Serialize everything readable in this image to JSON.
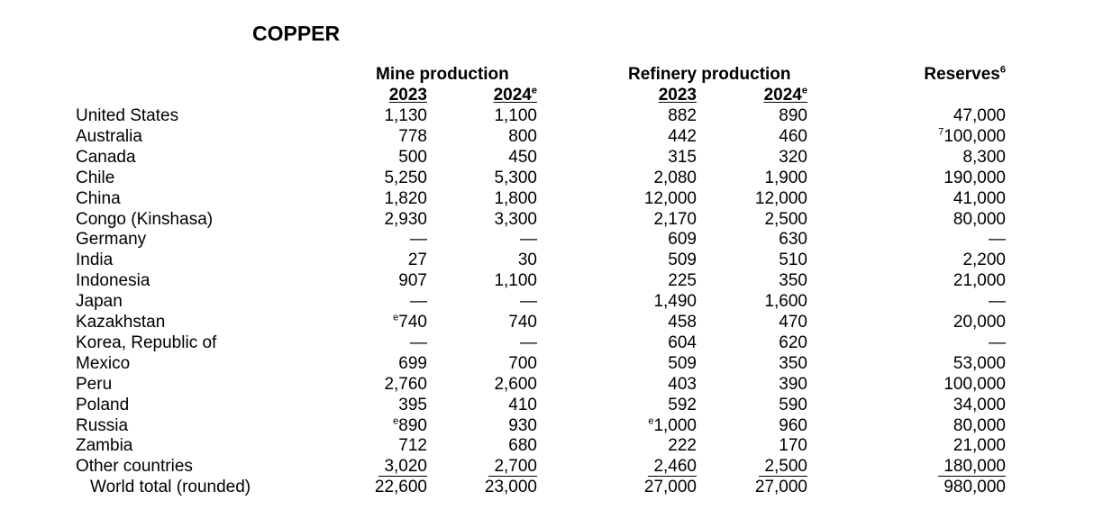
{
  "title": "COPPER",
  "headers": {
    "mine_production": "Mine production",
    "refinery_production": "Refinery production",
    "reserves": "Reserves",
    "reserves_note": "6",
    "year1": "2023",
    "year2": "2024",
    "estimate_mark": "e"
  },
  "rows": [
    {
      "country": "United States",
      "mine_2023": "1,130",
      "mine_2024": "1,100",
      "ref_2023": "882",
      "ref_2024": "890",
      "reserves": "47,000"
    },
    {
      "country": "Australia",
      "mine_2023": "778",
      "mine_2024": "800",
      "ref_2023": "442",
      "ref_2024": "460",
      "reserves_note": "7",
      "reserves": "100,000"
    },
    {
      "country": "Canada",
      "mine_2023": "500",
      "mine_2024": "450",
      "ref_2023": "315",
      "ref_2024": "320",
      "reserves": "8,300"
    },
    {
      "country": "Chile",
      "mine_2023": "5,250",
      "mine_2024": "5,300",
      "ref_2023": "2,080",
      "ref_2024": "1,900",
      "reserves": "190,000"
    },
    {
      "country": "China",
      "mine_2023": "1,820",
      "mine_2024": "1,800",
      "ref_2023": "12,000",
      "ref_2024": "12,000",
      "reserves": "41,000"
    },
    {
      "country": "Congo (Kinshasa)",
      "mine_2023": "2,930",
      "mine_2024": "3,300",
      "ref_2023": "2,170",
      "ref_2024": "2,500",
      "reserves": "80,000"
    },
    {
      "country": "Germany",
      "mine_2023": "—",
      "mine_2024": "—",
      "ref_2023": "609",
      "ref_2024": "630",
      "reserves": "—"
    },
    {
      "country": "India",
      "mine_2023": "27",
      "mine_2024": "30",
      "ref_2023": "509",
      "ref_2024": "510",
      "reserves": "2,200"
    },
    {
      "country": "Indonesia",
      "mine_2023": "907",
      "mine_2024": "1,100",
      "ref_2023": "225",
      "ref_2024": "350",
      "reserves": "21,000"
    },
    {
      "country": "Japan",
      "mine_2023": "—",
      "mine_2024": "—",
      "ref_2023": "1,490",
      "ref_2024": "1,600",
      "reserves": "—"
    },
    {
      "country": "Kazakhstan",
      "mine_2023_note": "e",
      "mine_2023": "740",
      "mine_2024": "740",
      "ref_2023": "458",
      "ref_2024": "470",
      "reserves": "20,000"
    },
    {
      "country": "Korea, Republic of",
      "mine_2023": "—",
      "mine_2024": "—",
      "ref_2023": "604",
      "ref_2024": "620",
      "reserves": "—"
    },
    {
      "country": "Mexico",
      "mine_2023": "699",
      "mine_2024": "700",
      "ref_2023": "509",
      "ref_2024": "350",
      "reserves": "53,000"
    },
    {
      "country": "Peru",
      "mine_2023": "2,760",
      "mine_2024": "2,600",
      "ref_2023": "403",
      "ref_2024": "390",
      "reserves": "100,000"
    },
    {
      "country": "Poland",
      "mine_2023": "395",
      "mine_2024": "410",
      "ref_2023": "592",
      "ref_2024": "590",
      "reserves": "34,000"
    },
    {
      "country": "Russia",
      "mine_2023_note": "e",
      "mine_2023": "890",
      "mine_2024": "930",
      "ref_2023_note": "e",
      "ref_2023": "1,000",
      "ref_2024": "960",
      "reserves": "80,000"
    },
    {
      "country": "Zambia",
      "mine_2023": "712",
      "mine_2024": "680",
      "ref_2023": "222",
      "ref_2024": "170",
      "reserves": "21,000"
    },
    {
      "country": "Other countries",
      "mine_2023": "3,020",
      "mine_2024": "2,700",
      "ref_2023": "2,460",
      "ref_2024": "2,500",
      "reserves": "180,000"
    }
  ],
  "total": {
    "country": "World total (rounded)",
    "mine_2023": "22,600",
    "mine_2024": "23,000",
    "ref_2023": "27,000",
    "ref_2024": "27,000",
    "reserves": "980,000"
  }
}
